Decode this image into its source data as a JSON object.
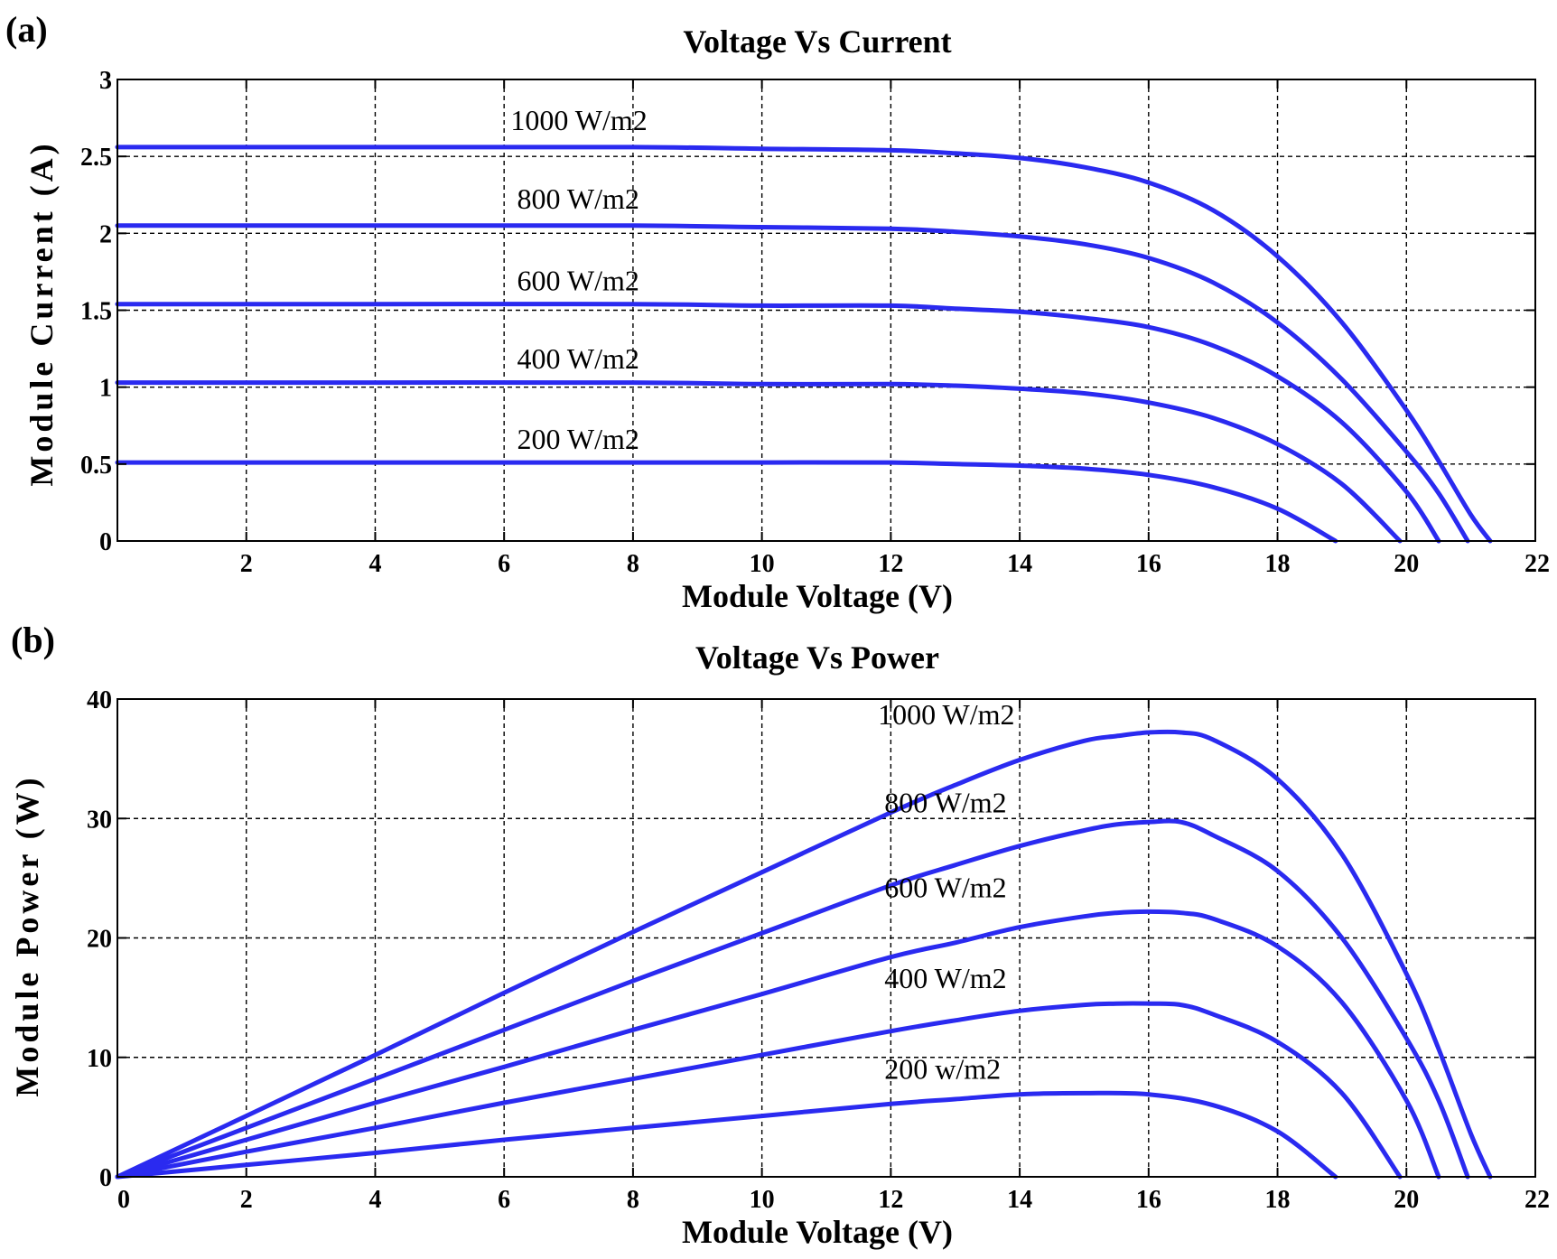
{
  "colors": {
    "series": "#2a2af0",
    "axis": "#000000",
    "background": "#ffffff"
  },
  "chart_data": [
    {
      "panel": "(a)",
      "type": "line",
      "title": "Voltage Vs Current",
      "xlabel": "Module Voltage (V)",
      "ylabel": "Module Current (A)",
      "xlim": [
        0,
        22
      ],
      "ylim": [
        0,
        3
      ],
      "xticks": [
        2,
        4,
        6,
        8,
        10,
        12,
        14,
        16,
        18,
        20,
        22
      ],
      "xtick_labels": [
        "2",
        "4",
        "6",
        "8",
        "10",
        "12",
        "14",
        "16",
        "18",
        "20",
        "22"
      ],
      "yticks": [
        0,
        0.5,
        1,
        1.5,
        2,
        2.5,
        3
      ],
      "ytick_labels": [
        "0",
        "0.5",
        "1",
        "1.5",
        "2",
        "2.5",
        "3"
      ],
      "grid": true,
      "series": [
        {
          "name": "1000 W/m2",
          "x": [
            0,
            4,
            8,
            10,
            12,
            13,
            14,
            15,
            16,
            17,
            18,
            19,
            20,
            20.5,
            21,
            21.3
          ],
          "y": [
            2.56,
            2.56,
            2.56,
            2.55,
            2.54,
            2.52,
            2.49,
            2.43,
            2.33,
            2.15,
            1.85,
            1.42,
            0.85,
            0.52,
            0.17,
            0
          ]
        },
        {
          "name": "800 W/m2",
          "x": [
            0,
            4,
            8,
            10,
            12,
            13,
            14,
            15,
            16,
            17,
            18,
            19,
            20,
            20.5,
            20.95
          ],
          "y": [
            2.05,
            2.05,
            2.05,
            2.04,
            2.03,
            2.01,
            1.98,
            1.93,
            1.84,
            1.68,
            1.42,
            1.05,
            0.58,
            0.31,
            0
          ]
        },
        {
          "name": "600 W/m2",
          "x": [
            0,
            4,
            8,
            10,
            12,
            13,
            14,
            15,
            16,
            17,
            18,
            19,
            20,
            20.5
          ],
          "y": [
            1.54,
            1.54,
            1.54,
            1.53,
            1.53,
            1.51,
            1.49,
            1.45,
            1.39,
            1.27,
            1.07,
            0.77,
            0.32,
            0
          ]
        },
        {
          "name": "400 W/m2",
          "x": [
            0,
            4,
            8,
            10,
            12,
            13,
            14,
            15,
            16,
            17,
            18,
            19,
            19.9
          ],
          "y": [
            1.03,
            1.03,
            1.03,
            1.02,
            1.02,
            1.01,
            0.99,
            0.96,
            0.9,
            0.8,
            0.63,
            0.37,
            0
          ]
        },
        {
          "name": "200 W/m2",
          "x": [
            0,
            4,
            8,
            10,
            12,
            13,
            14,
            15,
            16,
            17,
            18,
            18.9
          ],
          "y": [
            0.51,
            0.51,
            0.51,
            0.51,
            0.51,
            0.5,
            0.49,
            0.47,
            0.43,
            0.35,
            0.21,
            0
          ]
        }
      ],
      "series_labels": [
        {
          "text": "1000 W/m2",
          "x": 6.1,
          "y": 2.67
        },
        {
          "text": "800 W/m2",
          "x": 6.2,
          "y": 2.16
        },
        {
          "text": "600 W/m2",
          "x": 6.2,
          "y": 1.63
        },
        {
          "text": "400 W/m2",
          "x": 6.2,
          "y": 1.12
        },
        {
          "text": "200 W/m2",
          "x": 6.2,
          "y": 0.6
        }
      ]
    },
    {
      "panel": "(b)",
      "type": "line",
      "title": "Voltage Vs Power",
      "xlabel": "Module Voltage (V)",
      "ylabel": "Module Power (W)",
      "xlim": [
        0,
        22
      ],
      "ylim": [
        0,
        40
      ],
      "xticks": [
        0,
        2,
        4,
        6,
        8,
        10,
        12,
        14,
        16,
        18,
        20,
        22
      ],
      "xtick_labels": [
        "0",
        "2",
        "4",
        "6",
        "8",
        "10",
        "12",
        "14",
        "16",
        "18",
        "20",
        "22"
      ],
      "yticks": [
        0,
        10,
        20,
        30,
        40
      ],
      "ytick_labels": [
        "0",
        "10",
        "20",
        "30",
        "40"
      ],
      "grid": true,
      "series": [
        {
          "name": "1000 W/m2",
          "x": [
            0,
            2,
            4,
            6,
            8,
            10,
            12,
            13,
            14,
            15,
            15.5,
            16,
            16.5,
            17,
            18,
            19,
            20,
            20.5,
            21,
            21.3
          ],
          "y": [
            0,
            5.1,
            10.2,
            15.4,
            20.5,
            25.5,
            30.5,
            32.8,
            34.9,
            36.5,
            36.9,
            37.2,
            37.2,
            36.6,
            33.3,
            27,
            17,
            10.7,
            3.6,
            0
          ]
        },
        {
          "name": "800 W/m2",
          "x": [
            0,
            2,
            4,
            6,
            8,
            10,
            12,
            13,
            14,
            15,
            15.5,
            16,
            16.5,
            17,
            18,
            19,
            20,
            20.5,
            20.95
          ],
          "y": [
            0,
            4.1,
            8.2,
            12.3,
            16.4,
            20.4,
            24.4,
            26.1,
            27.7,
            29,
            29.5,
            29.7,
            29.7,
            28.6,
            25.6,
            20,
            11.6,
            6.4,
            0
          ]
        },
        {
          "name": "600 W/m2",
          "x": [
            0,
            2,
            4,
            6,
            8,
            10,
            12,
            13,
            14,
            15,
            15.5,
            16,
            16.5,
            17,
            18,
            19,
            20,
            20.5
          ],
          "y": [
            0,
            3.1,
            6.2,
            9.2,
            12.3,
            15.3,
            18.4,
            19.6,
            20.9,
            21.8,
            22.1,
            22.2,
            22.1,
            21.6,
            19.3,
            14.6,
            6.4,
            0
          ]
        },
        {
          "name": "400 W/m2",
          "x": [
            0,
            2,
            4,
            6,
            8,
            10,
            12,
            13,
            14,
            15,
            15.5,
            16,
            16.5,
            17,
            18,
            19,
            19.9
          ],
          "y": [
            0,
            2.1,
            4.1,
            6.2,
            8.2,
            10.2,
            12.2,
            13.1,
            13.9,
            14.4,
            14.5,
            14.5,
            14.4,
            13.6,
            11.3,
            7,
            0
          ]
        },
        {
          "name": "200 w/m2",
          "x": [
            0,
            2,
            4,
            6,
            8,
            10,
            12,
            13,
            14,
            15,
            16,
            17,
            18,
            18.9
          ],
          "y": [
            0,
            1,
            2,
            3.1,
            4.1,
            5.1,
            6.1,
            6.5,
            6.9,
            7,
            6.9,
            6,
            3.8,
            0
          ]
        }
      ],
      "series_labels": [
        {
          "text": "1000 W/m2",
          "x": 11.8,
          "y": 37.9
        },
        {
          "text": "800 W/m2",
          "x": 11.9,
          "y": 30.5
        },
        {
          "text": "600 W/m2",
          "x": 11.9,
          "y": 23.4
        },
        {
          "text": "400 W/m2",
          "x": 11.9,
          "y": 15.8
        },
        {
          "text": "200 w/m2",
          "x": 11.9,
          "y": 8.2
        }
      ]
    }
  ]
}
